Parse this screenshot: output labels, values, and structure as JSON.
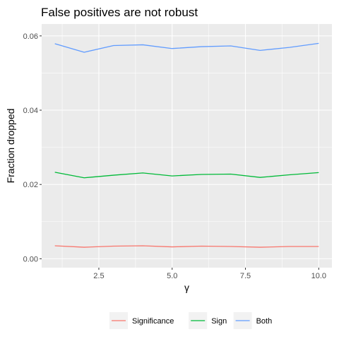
{
  "chart_data": {
    "type": "line",
    "title": "False positives are not robust",
    "xlabel": "γ",
    "ylabel": "Fraction dropped",
    "xlim": [
      0.55,
      10.45
    ],
    "ylim": [
      -0.0024,
      0.0632
    ],
    "x_ticks": [
      2.5,
      5.0,
      7.5,
      10.0
    ],
    "x_tick_labels": [
      "2.5",
      "5.0",
      "7.5",
      "10.0"
    ],
    "y_ticks": [
      0.0,
      0.02,
      0.04,
      0.06
    ],
    "y_tick_labels": [
      "0.00",
      "0.02",
      "0.04",
      "0.06"
    ],
    "x": [
      1,
      2,
      3,
      4,
      5,
      6,
      7,
      8,
      9,
      10
    ],
    "series": [
      {
        "name": "Significance",
        "color": "#F8766D",
        "values": [
          0.0035,
          0.0031,
          0.0034,
          0.0035,
          0.0032,
          0.0034,
          0.0033,
          0.0031,
          0.0033,
          0.0033
        ]
      },
      {
        "name": "Sign",
        "color": "#00BA38",
        "values": [
          0.0233,
          0.0218,
          0.0225,
          0.0231,
          0.0223,
          0.0227,
          0.0228,
          0.0219,
          0.0226,
          0.0232
        ]
      },
      {
        "name": "Both",
        "color": "#619CFF",
        "values": [
          0.0579,
          0.0556,
          0.0574,
          0.0576,
          0.0566,
          0.0571,
          0.0573,
          0.0561,
          0.0569,
          0.058
        ]
      }
    ],
    "grid": true,
    "legend_position": "bottom",
    "panel_background": "#EBEBEB"
  }
}
